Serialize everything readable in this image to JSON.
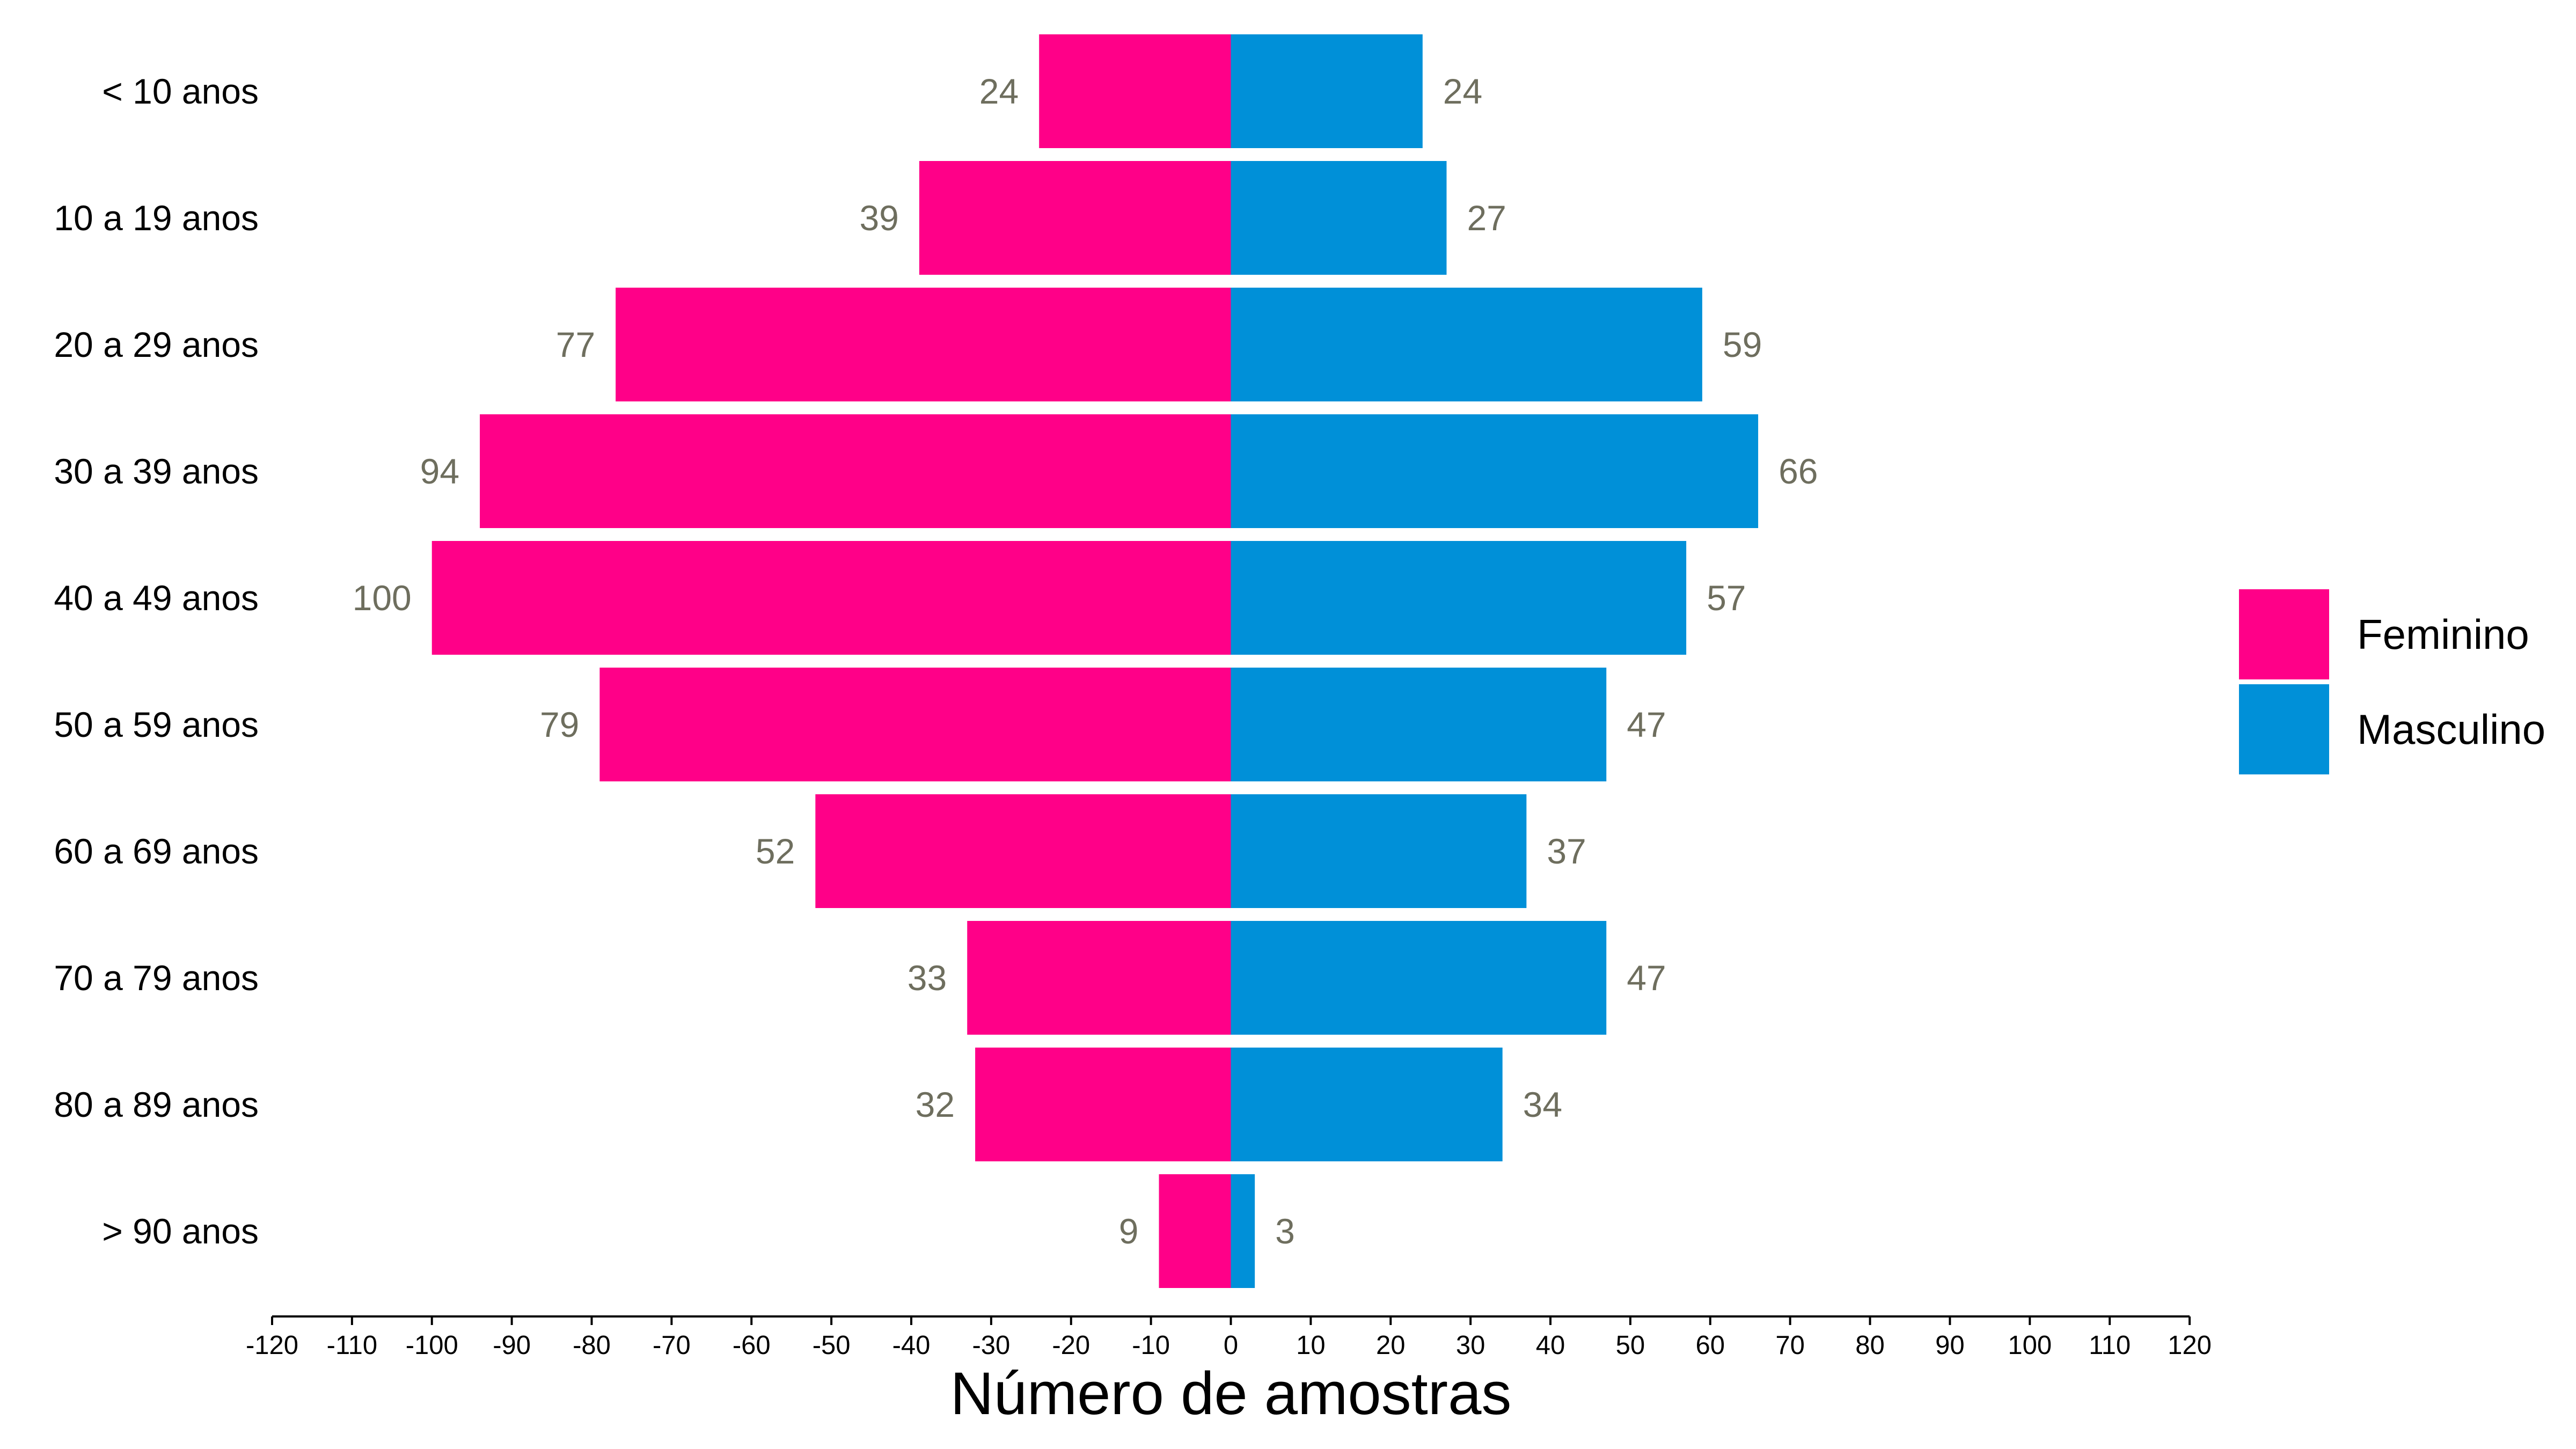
{
  "chart_data": {
    "type": "bar",
    "orientation": "horizontal-population-pyramid",
    "categories": [
      "< 10 anos",
      "10 a 19 anos",
      "20 a 29 anos",
      "30 a 39 anos",
      "40 a 49 anos",
      "50 a 59 anos",
      "60 a 69 anos",
      "70 a 79 anos",
      "80 a 89 anos",
      "> 90 anos"
    ],
    "series": [
      {
        "name": "Feminino",
        "color": "#ff0088",
        "values": [
          24,
          39,
          77,
          94,
          100,
          79,
          52,
          33,
          32,
          9
        ]
      },
      {
        "name": "Masculino",
        "color": "#0090d8",
        "values": [
          24,
          27,
          59,
          66,
          57,
          47,
          37,
          47,
          34,
          3
        ]
      }
    ],
    "xlabel": "Número de amostras",
    "xlim": [
      -120,
      120
    ],
    "xticks": [
      -120,
      -110,
      -100,
      -90,
      -80,
      -70,
      -60,
      -50,
      -40,
      -30,
      -20,
      -10,
      0,
      10,
      20,
      30,
      40,
      50,
      60,
      70,
      80,
      90,
      100,
      110,
      120
    ],
    "grid": false,
    "legend_position": "right"
  }
}
